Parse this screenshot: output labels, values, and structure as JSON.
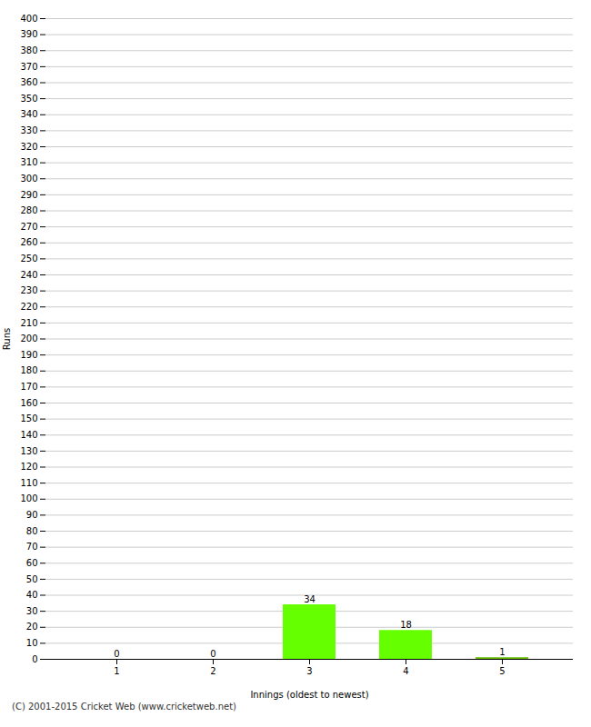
{
  "chart_data": {
    "type": "bar",
    "categories": [
      1,
      2,
      3,
      4,
      5
    ],
    "values": [
      0,
      0,
      34,
      18,
      1
    ],
    "colors": [
      "#66ff00",
      "#66ff00",
      "#66ff00",
      "#66ff00",
      "#66bb00"
    ],
    "xlabel": "Innings (oldest to newest)",
    "ylabel": "Runs",
    "ylim": [
      0,
      400
    ],
    "yticks": [
      0,
      10,
      20,
      30,
      40,
      50,
      60,
      70,
      80,
      90,
      100,
      110,
      120,
      130,
      140,
      150,
      160,
      170,
      180,
      190,
      200,
      210,
      220,
      230,
      240,
      250,
      260,
      270,
      280,
      290,
      300,
      310,
      320,
      330,
      340,
      350,
      360,
      370,
      380,
      390,
      400
    ],
    "grid": true,
    "data_labels": true,
    "annotations": [
      "(C) 2001-2015 Cricket Web (www.cricketweb.net)"
    ]
  }
}
